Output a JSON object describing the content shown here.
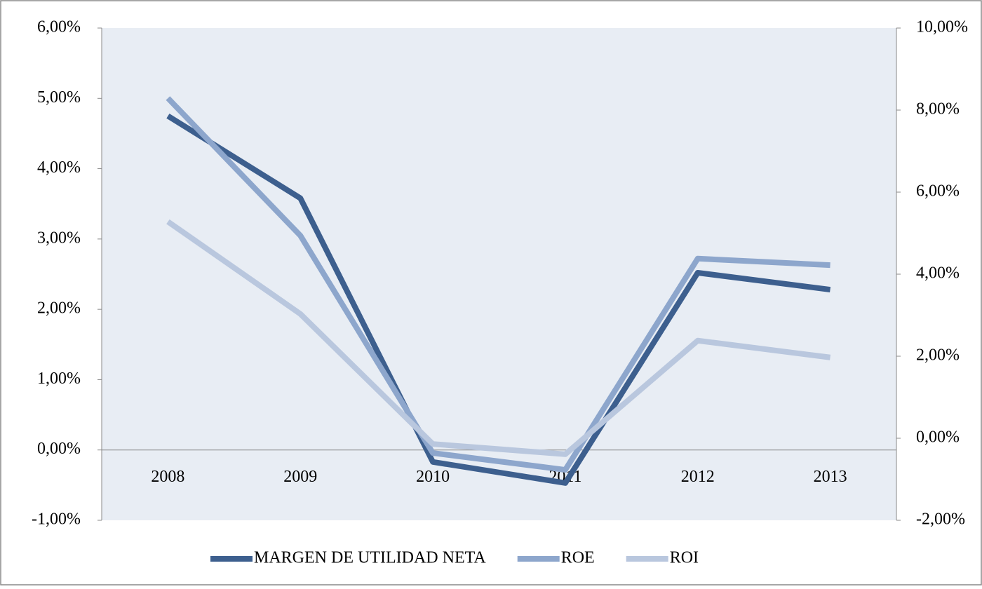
{
  "chart_data": {
    "type": "line",
    "categories": [
      "2008",
      "2009",
      "2010",
      "2011",
      "2012",
      "2013"
    ],
    "series": [
      {
        "name": "MARGEN DE UTILIDAD NETA",
        "color": "#3d5f8e",
        "values": [
          4.75,
          3.58,
          -0.17,
          -0.47,
          2.52,
          2.28
        ]
      },
      {
        "name": "ROE",
        "color": "#8da6cc",
        "axis": "y2",
        "values": [
          8.29,
          4.94,
          -0.36,
          -0.77,
          4.38,
          4.22
        ]
      },
      {
        "name": "ROI",
        "color": "#b9c7de",
        "axis": "y2",
        "values": [
          5.28,
          3.03,
          -0.14,
          -0.39,
          2.38,
          1.97
        ]
      }
    ],
    "ylim": [
      -1,
      6
    ],
    "yticks": [
      {
        "value": -1,
        "label": "-1,00%"
      },
      {
        "value": 0,
        "label": "0,00%"
      },
      {
        "value": 1,
        "label": "1,00%"
      },
      {
        "value": 2,
        "label": "2,00%"
      },
      {
        "value": 3,
        "label": "3,00%"
      },
      {
        "value": 4,
        "label": "4,00%"
      },
      {
        "value": 5,
        "label": "5,00%"
      },
      {
        "value": 6,
        "label": "6,00%"
      }
    ],
    "y2lim": [
      -2,
      10
    ],
    "y2ticks": [
      {
        "value": -2,
        "label": "-2,00%"
      },
      {
        "value": 0,
        "label": "0,00%"
      },
      {
        "value": 2,
        "label": "2,00%"
      },
      {
        "value": 4,
        "label": "4,00%"
      },
      {
        "value": 6,
        "label": "6,00%"
      },
      {
        "value": 8,
        "label": "8,00%"
      },
      {
        "value": 10,
        "label": "10,00%"
      }
    ],
    "legend": "bottom"
  }
}
